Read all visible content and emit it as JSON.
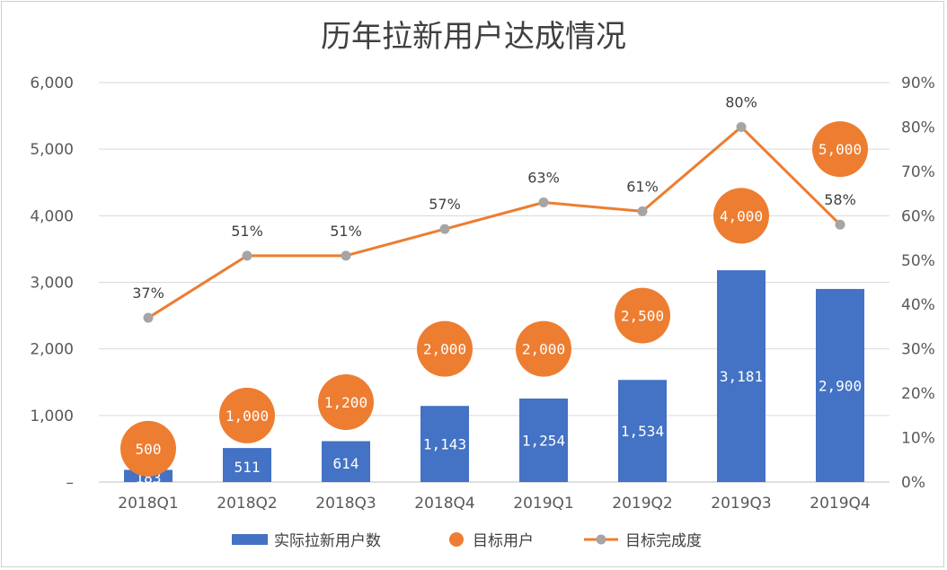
{
  "chart_data": {
    "type": "bar",
    "title": "历年拉新用户达成情况",
    "categories": [
      "2018Q1",
      "2018Q2",
      "2018Q3",
      "2018Q4",
      "2019Q1",
      "2019Q2",
      "2019Q3",
      "2019Q4"
    ],
    "series": [
      {
        "name": "实际拉新用户数",
        "type": "bar",
        "axis": "left",
        "color": "#4472C4",
        "values": [
          183,
          511,
          614,
          1143,
          1254,
          1534,
          3181,
          2900
        ],
        "labels": [
          "183",
          "511",
          "614",
          "1,143",
          "1,254",
          "1,534",
          "3,181",
          "2,900"
        ]
      },
      {
        "name": "目标用户",
        "type": "scatter",
        "axis": "left",
        "color": "#ED7D31",
        "values": [
          500,
          1000,
          1200,
          2000,
          2000,
          2500,
          4000,
          5000
        ],
        "labels": [
          "500",
          "1,000",
          "1,200",
          "2,000",
          "2,000",
          "2,500",
          "4,000",
          "5,000"
        ]
      },
      {
        "name": "目标完成度",
        "type": "line",
        "axis": "right",
        "color": "#ED7D31",
        "marker_color": "#A5A5A5",
        "values": [
          37,
          51,
          51,
          57,
          63,
          61,
          80,
          58
        ],
        "labels": [
          "37%",
          "51%",
          "51%",
          "57%",
          "63%",
          "61%",
          "80%",
          "58%"
        ]
      }
    ],
    "left_axis": {
      "ylim": [
        0,
        6000
      ],
      "ticks": [
        0,
        1000,
        2000,
        3000,
        4000,
        5000,
        6000
      ],
      "tick_labels": [
        "–",
        "1,000",
        "2,000",
        "3,000",
        "4,000",
        "5,000",
        "6,000"
      ]
    },
    "right_axis": {
      "ylim": [
        0,
        90
      ],
      "ticks": [
        0,
        10,
        20,
        30,
        40,
        50,
        60,
        70,
        80,
        90
      ],
      "tick_labels": [
        "0%",
        "10%",
        "20%",
        "30%",
        "40%",
        "50%",
        "60%",
        "70%",
        "80%",
        "90%"
      ]
    },
    "grid": true,
    "legend_position": "bottom"
  }
}
